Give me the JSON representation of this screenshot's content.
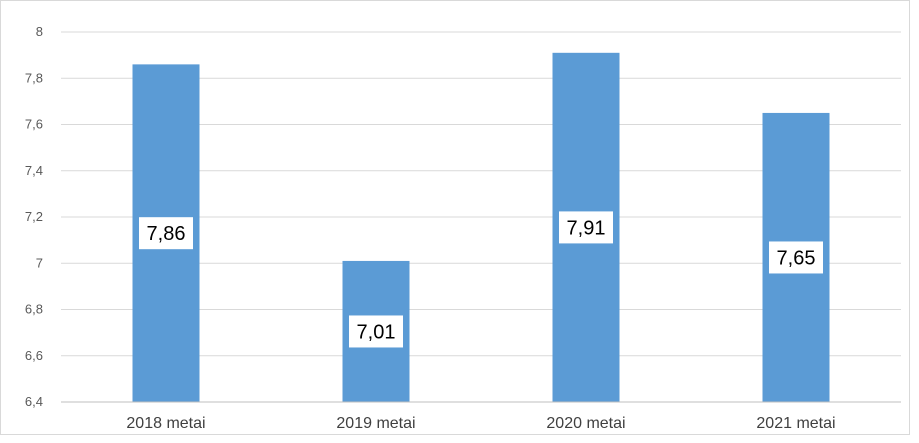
{
  "chart_data": {
    "type": "bar",
    "categories": [
      "2018 metai",
      "2019 metai",
      "2020 metai",
      "2021 metai"
    ],
    "values": [
      7.86,
      7.01,
      7.91,
      7.65
    ],
    "value_labels": [
      "7,86",
      "7,01",
      "7,91",
      "7,65"
    ],
    "title": "",
    "xlabel": "",
    "ylabel": "",
    "ylim": [
      6.4,
      8
    ],
    "yticks": [
      6.4,
      6.6,
      6.8,
      7,
      7.2,
      7.4,
      7.6,
      7.8,
      8
    ],
    "ytick_labels": [
      "6,4",
      "6,6",
      "6,8",
      "7",
      "7,2",
      "7,4",
      "7,6",
      "7,8",
      "8"
    ],
    "grid": true,
    "legend": "none",
    "bar_color": "#5b9bd5"
  }
}
